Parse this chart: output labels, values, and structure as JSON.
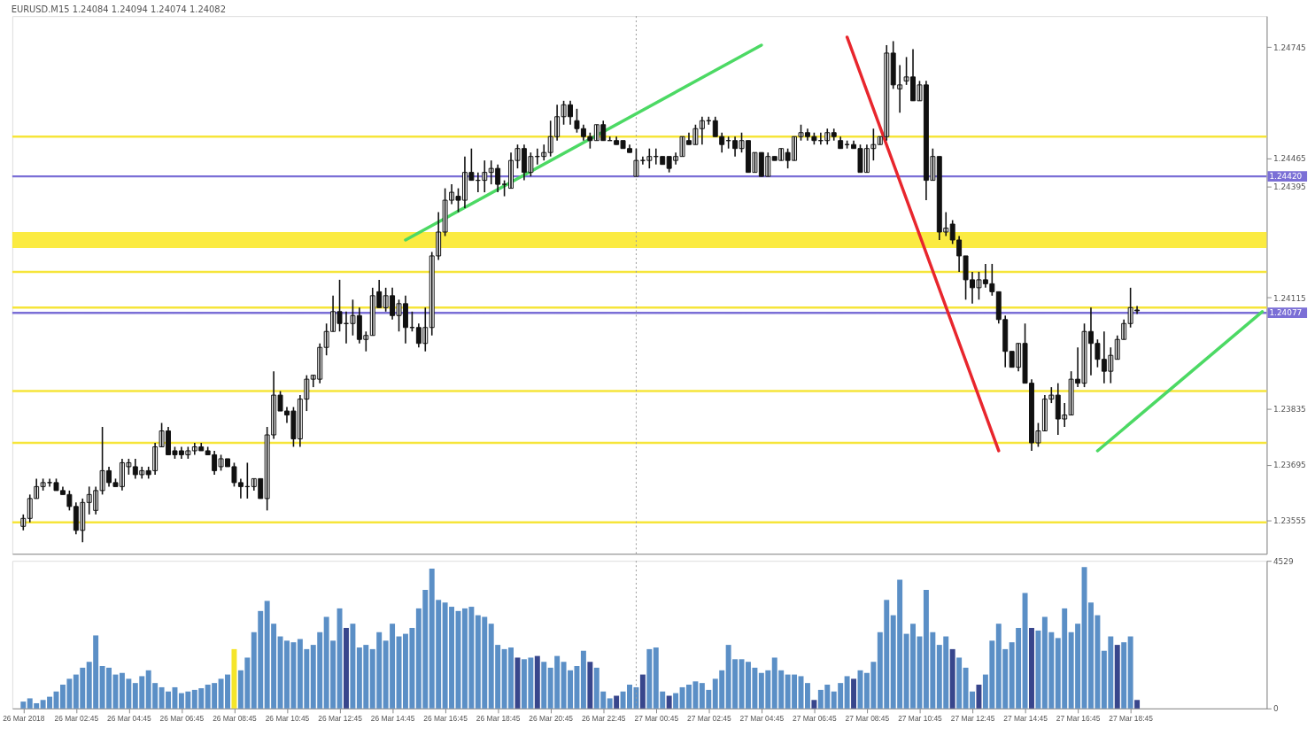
{
  "chart_data": [
    {
      "type": "candlestick",
      "title": "EURUSD.M15 1.24084 1.24094 1.24074 1.24082",
      "x": [
        "2018-03-26T00:45",
        "2018-03-26T01:00",
        "2018-03-26T01:15",
        "2018-03-26T01:30",
        "2018-03-26T01:45",
        "2018-03-26T02:00",
        "2018-03-26T02:15",
        "2018-03-26T02:30",
        "2018-03-26T02:45",
        "2018-03-26T03:00",
        "2018-03-26T03:15",
        "2018-03-26T03:30",
        "2018-03-26T03:45",
        "2018-03-26T04:00",
        "2018-03-26T04:15",
        "2018-03-26T04:30",
        "2018-03-26T04:45",
        "2018-03-26T05:00",
        "2018-03-26T05:15",
        "2018-03-26T05:30",
        "2018-03-26T05:45",
        "2018-03-26T06:00",
        "2018-03-26T06:15",
        "2018-03-26T06:30",
        "2018-03-26T06:45",
        "2018-03-26T07:00",
        "2018-03-26T07:15",
        "2018-03-26T07:30",
        "2018-03-26T07:45",
        "2018-03-26T08:00",
        "2018-03-26T08:15",
        "2018-03-26T08:30",
        "2018-03-26T08:45",
        "2018-03-26T09:00",
        "2018-03-26T09:15",
        "2018-03-26T09:30",
        "2018-03-26T09:45",
        "2018-03-26T10:00",
        "2018-03-26T10:15",
        "2018-03-26T10:30",
        "2018-03-26T10:45",
        "2018-03-26T11:00",
        "2018-03-26T11:15",
        "2018-03-26T11:30",
        "2018-03-26T11:45",
        "2018-03-26T12:00",
        "2018-03-26T12:15",
        "2018-03-26T12:30",
        "2018-03-26T12:45",
        "2018-03-26T13:00",
        "2018-03-26T13:15",
        "2018-03-26T13:30",
        "2018-03-26T13:45",
        "2018-03-26T14:00",
        "2018-03-26T14:15",
        "2018-03-26T14:30",
        "2018-03-26T14:45",
        "2018-03-26T15:00",
        "2018-03-26T15:15",
        "2018-03-26T15:30",
        "2018-03-26T15:45",
        "2018-03-26T16:00",
        "2018-03-26T16:15",
        "2018-03-26T16:30",
        "2018-03-26T16:45",
        "2018-03-26T17:00",
        "2018-03-26T17:15",
        "2018-03-26T17:30",
        "2018-03-26T17:45",
        "2018-03-26T18:00",
        "2018-03-26T18:15",
        "2018-03-26T18:30",
        "2018-03-26T18:45",
        "2018-03-26T19:00",
        "2018-03-26T19:15",
        "2018-03-26T19:30",
        "2018-03-26T19:45",
        "2018-03-26T20:00",
        "2018-03-26T20:15",
        "2018-03-26T20:30",
        "2018-03-26T20:45",
        "2018-03-26T21:00",
        "2018-03-26T21:15",
        "2018-03-26T21:30",
        "2018-03-26T21:45",
        "2018-03-26T22:00",
        "2018-03-26T22:15",
        "2018-03-26T22:30",
        "2018-03-26T22:45",
        "2018-03-26T23:00",
        "2018-03-26T23:15",
        "2018-03-26T23:30",
        "2018-03-26T23:45",
        "2018-03-27T00:00",
        "2018-03-27T00:15",
        "2018-03-27T00:30",
        "2018-03-27T00:45",
        "2018-03-27T01:00",
        "2018-03-27T01:15",
        "2018-03-27T01:30",
        "2018-03-27T01:45",
        "2018-03-27T02:00",
        "2018-03-27T02:15",
        "2018-03-27T02:30",
        "2018-03-27T02:45",
        "2018-03-27T03:00",
        "2018-03-27T03:15",
        "2018-03-27T03:30",
        "2018-03-27T03:45",
        "2018-03-27T04:00",
        "2018-03-27T04:15",
        "2018-03-27T04:30",
        "2018-03-27T04:45",
        "2018-03-27T05:00",
        "2018-03-27T05:15",
        "2018-03-27T05:30",
        "2018-03-27T05:45",
        "2018-03-27T06:00",
        "2018-03-27T06:15",
        "2018-03-27T06:30",
        "2018-03-27T06:45",
        "2018-03-27T07:00",
        "2018-03-27T07:15",
        "2018-03-27T07:30",
        "2018-03-27T07:45",
        "2018-03-27T08:00",
        "2018-03-27T08:15",
        "2018-03-27T08:30",
        "2018-03-27T08:45",
        "2018-03-27T09:00",
        "2018-03-27T09:15",
        "2018-03-27T09:30",
        "2018-03-27T09:45",
        "2018-03-27T10:00",
        "2018-03-27T10:15",
        "2018-03-27T10:30",
        "2018-03-27T10:45",
        "2018-03-27T11:00",
        "2018-03-27T11:15",
        "2018-03-27T11:30",
        "2018-03-27T11:45",
        "2018-03-27T12:00",
        "2018-03-27T12:15",
        "2018-03-27T12:30",
        "2018-03-27T12:45",
        "2018-03-27T13:00",
        "2018-03-27T13:15",
        "2018-03-27T13:30",
        "2018-03-27T13:45",
        "2018-03-27T14:00",
        "2018-03-27T14:15",
        "2018-03-27T14:30",
        "2018-03-27T14:45",
        "2018-03-27T15:00",
        "2018-03-27T15:15",
        "2018-03-27T15:30",
        "2018-03-27T15:45",
        "2018-03-27T16:00",
        "2018-03-27T16:15",
        "2018-03-27T16:30",
        "2018-03-27T16:45",
        "2018-03-27T17:00",
        "2018-03-27T17:15",
        "2018-03-27T17:30",
        "2018-03-27T17:45",
        "2018-03-27T18:00",
        "2018-03-27T18:15",
        "2018-03-27T18:30",
        "2018-03-27T18:45",
        "2018-03-27T19:00"
      ],
      "ohlc": [
        [
          1.2354,
          1.2357,
          1.2353,
          1.2356
        ],
        [
          1.2356,
          1.2362,
          1.2355,
          1.2361
        ],
        [
          1.2361,
          1.2366,
          1.2361,
          1.2364
        ],
        [
          1.2364,
          1.2366,
          1.2363,
          1.2365
        ],
        [
          1.2365,
          1.2366,
          1.2364,
          1.2365
        ],
        [
          1.2365,
          1.2366,
          1.2363,
          1.2363
        ],
        [
          1.2363,
          1.2364,
          1.2362,
          1.2362
        ],
        [
          1.2362,
          1.2363,
          1.2358,
          1.2359
        ],
        [
          1.2359,
          1.236,
          1.2352,
          1.2353
        ],
        [
          1.2353,
          1.2361,
          1.235,
          1.236
        ],
        [
          1.236,
          1.2364,
          1.2357,
          1.2362
        ],
        [
          1.2358,
          1.2364,
          1.2357,
          1.2363
        ],
        [
          1.2363,
          1.2379,
          1.2362,
          1.2368
        ],
        [
          1.2368,
          1.2369,
          1.2364,
          1.2365
        ],
        [
          1.2365,
          1.2366,
          1.2364,
          1.2364
        ],
        [
          1.2364,
          1.2371,
          1.2363,
          1.237
        ],
        [
          1.2369,
          1.2371,
          1.2367,
          1.237
        ],
        [
          1.2369,
          1.2371,
          1.2366,
          1.2367
        ],
        [
          1.2367,
          1.2369,
          1.2366,
          1.2368
        ],
        [
          1.2368,
          1.2369,
          1.2366,
          1.2367
        ],
        [
          1.2368,
          1.2375,
          1.2367,
          1.2374
        ],
        [
          1.2374,
          1.238,
          1.2374,
          1.2378
        ],
        [
          1.2378,
          1.2379,
          1.2372,
          1.2372
        ],
        [
          1.2373,
          1.2374,
          1.2371,
          1.2372
        ],
        [
          1.2373,
          1.2374,
          1.2371,
          1.2372
        ],
        [
          1.2372,
          1.2374,
          1.2371,
          1.2373
        ],
        [
          1.2373,
          1.2375,
          1.2372,
          1.2374
        ],
        [
          1.2374,
          1.2375,
          1.2373,
          1.2373
        ],
        [
          1.2373,
          1.2374,
          1.2372,
          1.2372
        ],
        [
          1.2372,
          1.2373,
          1.2367,
          1.2368
        ],
        [
          1.2369,
          1.2372,
          1.2368,
          1.2371
        ],
        [
          1.2371,
          1.2371,
          1.2369,
          1.2369
        ],
        [
          1.2369,
          1.237,
          1.2364,
          1.2365
        ],
        [
          1.2365,
          1.2366,
          1.2361,
          1.2364
        ],
        [
          1.2364,
          1.237,
          1.2361,
          1.2364
        ],
        [
          1.2364,
          1.2366,
          1.2363,
          1.2366
        ],
        [
          1.2366,
          1.2366,
          1.2361,
          1.2361
        ],
        [
          1.2361,
          1.2379,
          1.2358,
          1.2377
        ],
        [
          1.2377,
          1.2393,
          1.2376,
          1.2387
        ],
        [
          1.2387,
          1.2388,
          1.2383,
          1.2383
        ],
        [
          1.2383,
          1.2384,
          1.238,
          1.2382
        ],
        [
          1.2383,
          1.2384,
          1.2374,
          1.2376
        ],
        [
          1.2376,
          1.2387,
          1.2374,
          1.2386
        ],
        [
          1.2386,
          1.2392,
          1.2383,
          1.2391
        ],
        [
          1.2391,
          1.2392,
          1.2389,
          1.2392
        ],
        [
          1.2391,
          1.24,
          1.239,
          1.2399
        ],
        [
          1.2399,
          1.2405,
          1.2397,
          1.2403
        ],
        [
          1.2403,
          1.2412,
          1.2403,
          1.2408
        ],
        [
          1.2408,
          1.2416,
          1.2403,
          1.2405
        ],
        [
          1.2405,
          1.2408,
          1.24,
          1.2405
        ],
        [
          1.2405,
          1.2411,
          1.2402,
          1.2407
        ],
        [
          1.2407,
          1.2409,
          1.24,
          1.2401
        ],
        [
          1.2401,
          1.2403,
          1.2398,
          1.2402
        ],
        [
          1.2402,
          1.2414,
          1.2402,
          1.2412
        ],
        [
          1.2413,
          1.2416,
          1.2409,
          1.2409
        ],
        [
          1.2409,
          1.2414,
          1.2408,
          1.2412
        ],
        [
          1.2412,
          1.2414,
          1.2406,
          1.2407
        ],
        [
          1.2407,
          1.2411,
          1.2403,
          1.241
        ],
        [
          1.241,
          1.2412,
          1.24,
          1.2404
        ],
        [
          1.2404,
          1.2408,
          1.2403,
          1.2404
        ],
        [
          1.2404,
          1.2405,
          1.2399,
          1.24
        ],
        [
          1.24,
          1.2409,
          1.2398,
          1.2404
        ],
        [
          1.2404,
          1.2423,
          1.2402,
          1.2422
        ],
        [
          1.2422,
          1.2433,
          1.2421,
          1.2428
        ],
        [
          1.2428,
          1.2439,
          1.2427,
          1.2436
        ],
        [
          1.2436,
          1.244,
          1.2435,
          1.2438
        ],
        [
          1.2437,
          1.2439,
          1.2433,
          1.2436
        ],
        [
          1.2436,
          1.2447,
          1.2434,
          1.2443
        ],
        [
          1.2443,
          1.2449,
          1.2441,
          1.2441
        ],
        [
          1.2441,
          1.2443,
          1.2438,
          1.2441
        ],
        [
          1.2441,
          1.2446,
          1.2438,
          1.2443
        ],
        [
          1.2443,
          1.2446,
          1.244,
          1.2444
        ],
        [
          1.2444,
          1.2445,
          1.2438,
          1.244
        ],
        [
          1.244,
          1.2441,
          1.2437,
          1.244
        ],
        [
          1.2439,
          1.2448,
          1.2439,
          1.2446
        ],
        [
          1.2446,
          1.245,
          1.2444,
          1.2449
        ],
        [
          1.2449,
          1.245,
          1.2441,
          1.2443
        ],
        [
          1.2443,
          1.2448,
          1.2442,
          1.2447
        ],
        [
          1.2447,
          1.2449,
          1.2445,
          1.2447
        ],
        [
          1.2447,
          1.245,
          1.2446,
          1.2448
        ],
        [
          1.2448,
          1.2456,
          1.2447,
          1.2452
        ],
        [
          1.2452,
          1.246,
          1.2451,
          1.2457
        ],
        [
          1.2457,
          1.2461,
          1.2455,
          1.246
        ],
        [
          1.246,
          1.2461,
          1.2455,
          1.2457
        ],
        [
          1.2456,
          1.2459,
          1.2453,
          1.2454
        ],
        [
          1.2454,
          1.2455,
          1.2451,
          1.2452
        ],
        [
          1.2452,
          1.2453,
          1.2449,
          1.2451
        ],
        [
          1.2451,
          1.2455,
          1.2451,
          1.2455
        ],
        [
          1.2455,
          1.2456,
          1.2451,
          1.2451
        ],
        [
          1.2451,
          1.2452,
          1.2451,
          1.2451
        ],
        [
          1.2451,
          1.2452,
          1.245,
          1.245
        ],
        [
          1.2451,
          1.2451,
          1.2449,
          1.2449
        ],
        [
          1.2449,
          1.245,
          1.2448,
          1.2448
        ],
        [
          1.2442,
          1.2449,
          1.2442,
          1.2446
        ],
        [
          1.2446,
          1.2447,
          1.2445,
          1.2446
        ],
        [
          1.2446,
          1.2449,
          1.2444,
          1.2447
        ],
        [
          1.2447,
          1.2449,
          1.2445,
          1.2447
        ],
        [
          1.2447,
          1.2447,
          1.2445,
          1.2445
        ],
        [
          1.2447,
          1.2447,
          1.2443,
          1.2444
        ],
        [
          1.2446,
          1.2448,
          1.2445,
          1.2447
        ],
        [
          1.2447,
          1.2452,
          1.2447,
          1.2452
        ],
        [
          1.2451,
          1.2453,
          1.245,
          1.245
        ],
        [
          1.245,
          1.2455,
          1.245,
          1.2454
        ],
        [
          1.2454,
          1.2457,
          1.245,
          1.2456
        ],
        [
          1.2456,
          1.2457,
          1.2455,
          1.2456
        ],
        [
          1.2456,
          1.2457,
          1.2452,
          1.2452
        ],
        [
          1.2452,
          1.2453,
          1.2448,
          1.245
        ],
        [
          1.2451,
          1.2452,
          1.2449,
          1.2451
        ],
        [
          1.2451,
          1.2452,
          1.2447,
          1.2449
        ],
        [
          1.2449,
          1.2453,
          1.2448,
          1.2451
        ],
        [
          1.2451,
          1.2451,
          1.2443,
          1.2443
        ],
        [
          1.2443,
          1.2448,
          1.2443,
          1.2448
        ],
        [
          1.2448,
          1.2448,
          1.2442,
          1.2442
        ],
        [
          1.2442,
          1.2448,
          1.2442,
          1.2447
        ],
        [
          1.2447,
          1.2447,
          1.2446,
          1.2446
        ],
        [
          1.2446,
          1.2449,
          1.2446,
          1.2449
        ],
        [
          1.2448,
          1.2449,
          1.2444,
          1.2446
        ],
        [
          1.2446,
          1.2452,
          1.2446,
          1.2452
        ],
        [
          1.2452,
          1.2455,
          1.2451,
          1.2453
        ],
        [
          1.2453,
          1.2454,
          1.2451,
          1.2452
        ],
        [
          1.2452,
          1.2453,
          1.245,
          1.2451
        ],
        [
          1.2451,
          1.2453,
          1.245,
          1.2451
        ],
        [
          1.2451,
          1.2454,
          1.245,
          1.2453
        ],
        [
          1.2453,
          1.2454,
          1.2451,
          1.2452
        ],
        [
          1.2451,
          1.2452,
          1.2449,
          1.2449
        ],
        [
          1.245,
          1.2451,
          1.2449,
          1.245
        ],
        [
          1.245,
          1.2451,
          1.2449,
          1.2449
        ],
        [
          1.2449,
          1.245,
          1.2443,
          1.2443
        ],
        [
          1.2443,
          1.245,
          1.2443,
          1.2449
        ],
        [
          1.2449,
          1.2454,
          1.2446,
          1.245
        ],
        [
          1.245,
          1.2452,
          1.245,
          1.2452
        ],
        [
          1.2452,
          1.2475,
          1.2451,
          1.2473
        ],
        [
          1.2473,
          1.2476,
          1.2464,
          1.2465
        ],
        [
          1.2464,
          1.247,
          1.2458,
          1.2465
        ],
        [
          1.2466,
          1.2472,
          1.2465,
          1.2467
        ],
        [
          1.2467,
          1.2474,
          1.2461,
          1.2461
        ],
        [
          1.2461,
          1.2466,
          1.2461,
          1.2465
        ],
        [
          1.2465,
          1.2466,
          1.2436,
          1.2441
        ],
        [
          1.2441,
          1.2449,
          1.2441,
          1.2447
        ],
        [
          1.2447,
          1.2447,
          1.2426,
          1.2428
        ],
        [
          1.2428,
          1.2433,
          1.2427,
          1.2429
        ],
        [
          1.243,
          1.2431,
          1.2425,
          1.2426
        ],
        [
          1.2426,
          1.2427,
          1.2418,
          1.2422
        ],
        [
          1.2422,
          1.2422,
          1.2411,
          1.2416
        ],
        [
          1.2416,
          1.2418,
          1.241,
          1.2414
        ],
        [
          1.2414,
          1.2418,
          1.2411,
          1.2416
        ],
        [
          1.2416,
          1.242,
          1.2414,
          1.2415
        ],
        [
          1.2415,
          1.242,
          1.2412,
          1.2413
        ],
        [
          1.2413,
          1.2413,
          1.2405,
          1.2406
        ],
        [
          1.2406,
          1.2407,
          1.2394,
          1.2398
        ],
        [
          1.2398,
          1.2398,
          1.2394,
          1.2394
        ],
        [
          1.2394,
          1.24,
          1.2393,
          1.24
        ],
        [
          1.24,
          1.2405,
          1.239,
          1.239
        ],
        [
          1.239,
          1.2391,
          1.2373,
          1.2375
        ],
        [
          1.2375,
          1.238,
          1.2374,
          1.2378
        ],
        [
          1.2378,
          1.2387,
          1.2378,
          1.2386
        ],
        [
          1.2386,
          1.2389,
          1.2385,
          1.2387
        ],
        [
          1.2387,
          1.239,
          1.2377,
          1.2381
        ],
        [
          1.2381,
          1.2385,
          1.2379,
          1.2382
        ],
        [
          1.2382,
          1.2393,
          1.2382,
          1.2391
        ],
        [
          1.2391,
          1.2399,
          1.2389,
          1.239
        ],
        [
          1.239,
          1.2405,
          1.2389,
          1.2403
        ],
        [
          1.2403,
          1.2409,
          1.2392,
          1.24
        ],
        [
          1.24,
          1.2401,
          1.2394,
          1.2396
        ],
        [
          1.2396,
          1.2403,
          1.239,
          1.2393
        ],
        [
          1.2393,
          1.2399,
          1.239,
          1.2397
        ],
        [
          1.2396,
          1.2402,
          1.2396,
          1.2401
        ],
        [
          1.2401,
          1.2406,
          1.2401,
          1.2405
        ],
        [
          1.2405,
          1.2414,
          1.2404,
          1.2409
        ],
        [
          1.24084,
          1.24094,
          1.24074,
          1.24082
        ]
      ],
      "xlim": [
        "2018-03-26T00:30",
        "2018-03-27T23:45"
      ],
      "ylim": [
        1.23471,
        1.24823
      ],
      "yticks": [
        1.23555,
        1.23695,
        1.23835,
        1.24115,
        1.24395,
        1.24465,
        1.24745
      ],
      "tick_labels": "y",
      "series": [
        {
          "type": "line",
          "color": "#4cd964",
          "x": [
            "2018-03-26T15:15",
            "2018-03-27T04:45"
          ],
          "values": [
            1.2426,
            1.2475
          ]
        },
        {
          "type": "line",
          "color": "#e8262d",
          "x": [
            "2018-03-27T08:00",
            "2018-03-27T13:45"
          ],
          "values": [
            1.2477,
            1.2373
          ]
        },
        {
          "type": "line",
          "color": "#4cd964",
          "x": [
            "2018-03-27T17:30",
            "2018-03-27T23:45"
          ],
          "values": [
            1.2373,
            1.2408
          ]
        }
      ],
      "bands": [
        {
          "axis": "y",
          "from": 1.2424,
          "to": 1.2428,
          "color": "#fbe92e"
        }
      ],
      "ref_lines": [
        {
          "axis": "y",
          "value": 1.2452,
          "color": "#f6e53a"
        },
        {
          "axis": "y",
          "value": 1.2418,
          "color": "#f6e53a"
        },
        {
          "axis": "y",
          "value": 1.2409,
          "color": "#f6e53a"
        },
        {
          "axis": "y",
          "value": 1.2388,
          "color": "#f6e53a"
        },
        {
          "axis": "y",
          "value": 1.2375,
          "color": "#f6e53a"
        },
        {
          "axis": "y",
          "value": 1.2355,
          "color": "#f6e53a"
        },
        {
          "axis": "y",
          "value": 1.2442,
          "label": "1.24420",
          "color": "#7b6fd6"
        },
        {
          "axis": "y",
          "value": 1.24077,
          "label": "1.24077",
          "color": "#7b6fd6"
        },
        {
          "axis": "x",
          "value": "2018-03-27T00:00",
          "color": "#9a9a9a",
          "line_style": "dotted"
        }
      ]
    },
    {
      "type": "bar",
      "x": [
        "2018-03-26T00:45",
        "2018-03-26T01:00",
        "2018-03-26T01:15",
        "2018-03-26T01:30",
        "2018-03-26T01:45",
        "2018-03-26T02:00",
        "2018-03-26T02:15",
        "2018-03-26T02:30",
        "2018-03-26T02:45",
        "2018-03-26T03:00",
        "2018-03-26T03:15",
        "2018-03-26T03:30",
        "2018-03-26T03:45",
        "2018-03-26T04:00",
        "2018-03-26T04:15",
        "2018-03-26T04:30",
        "2018-03-26T04:45",
        "2018-03-26T05:00",
        "2018-03-26T05:15",
        "2018-03-26T05:30",
        "2018-03-26T05:45",
        "2018-03-26T06:00",
        "2018-03-26T06:15",
        "2018-03-26T06:30",
        "2018-03-26T06:45",
        "2018-03-26T07:00",
        "2018-03-26T07:15",
        "2018-03-26T07:30",
        "2018-03-26T07:45",
        "2018-03-26T08:00",
        "2018-03-26T08:15",
        "2018-03-26T08:30",
        "2018-03-26T08:45",
        "2018-03-26T09:00",
        "2018-03-26T09:15",
        "2018-03-26T09:30",
        "2018-03-26T09:45",
        "2018-03-26T10:00",
        "2018-03-26T10:15",
        "2018-03-26T10:30",
        "2018-03-26T10:45",
        "2018-03-26T11:00",
        "2018-03-26T11:15",
        "2018-03-26T11:30",
        "2018-03-26T11:45",
        "2018-03-26T12:00",
        "2018-03-26T12:15",
        "2018-03-26T12:30",
        "2018-03-26T12:45",
        "2018-03-26T13:00",
        "2018-03-26T13:15",
        "2018-03-26T13:30",
        "2018-03-26T13:45",
        "2018-03-26T14:00",
        "2018-03-26T14:15",
        "2018-03-26T14:30",
        "2018-03-26T14:45",
        "2018-03-26T15:00",
        "2018-03-26T15:15",
        "2018-03-26T15:30",
        "2018-03-26T15:45",
        "2018-03-26T16:00",
        "2018-03-26T16:15",
        "2018-03-26T16:30",
        "2018-03-26T16:45",
        "2018-03-26T17:00",
        "2018-03-26T17:15",
        "2018-03-26T17:30",
        "2018-03-26T17:45",
        "2018-03-26T18:00",
        "2018-03-26T18:15",
        "2018-03-26T18:30",
        "2018-03-26T18:45",
        "2018-03-26T19:00",
        "2018-03-26T19:15",
        "2018-03-26T19:30",
        "2018-03-26T19:45",
        "2018-03-26T20:00",
        "2018-03-26T20:15",
        "2018-03-26T20:30",
        "2018-03-26T20:45",
        "2018-03-26T21:00",
        "2018-03-26T21:15",
        "2018-03-26T21:30",
        "2018-03-26T21:45",
        "2018-03-26T22:00",
        "2018-03-26T22:15",
        "2018-03-26T22:30",
        "2018-03-26T22:45",
        "2018-03-26T23:00",
        "2018-03-26T23:15",
        "2018-03-26T23:30",
        "2018-03-26T23:45",
        "2018-03-27T00:00",
        "2018-03-27T00:15",
        "2018-03-27T00:30",
        "2018-03-27T00:45",
        "2018-03-27T01:00",
        "2018-03-27T01:15",
        "2018-03-27T01:30",
        "2018-03-27T01:45",
        "2018-03-27T02:00",
        "2018-03-27T02:15",
        "2018-03-27T02:30",
        "2018-03-27T02:45",
        "2018-03-27T03:00",
        "2018-03-27T03:15",
        "2018-03-27T03:30",
        "2018-03-27T03:45",
        "2018-03-27T04:00",
        "2018-03-27T04:15",
        "2018-03-27T04:30",
        "2018-03-27T04:45",
        "2018-03-27T05:00",
        "2018-03-27T05:15",
        "2018-03-27T05:30",
        "2018-03-27T05:45",
        "2018-03-27T06:00",
        "2018-03-27T06:15",
        "2018-03-27T06:30",
        "2018-03-27T06:45",
        "2018-03-27T07:00",
        "2018-03-27T07:15",
        "2018-03-27T07:30",
        "2018-03-27T07:45",
        "2018-03-27T08:00",
        "2018-03-27T08:15",
        "2018-03-27T08:30",
        "2018-03-27T08:45",
        "2018-03-27T09:00",
        "2018-03-27T09:15",
        "2018-03-27T09:30",
        "2018-03-27T09:45",
        "2018-03-27T10:00",
        "2018-03-27T10:15",
        "2018-03-27T10:30",
        "2018-03-27T10:45",
        "2018-03-27T11:00",
        "2018-03-27T11:15",
        "2018-03-27T11:30",
        "2018-03-27T11:45",
        "2018-03-27T12:00",
        "2018-03-27T12:15",
        "2018-03-27T12:30",
        "2018-03-27T12:45",
        "2018-03-27T13:00",
        "2018-03-27T13:15",
        "2018-03-27T13:30",
        "2018-03-27T13:45",
        "2018-03-27T14:00",
        "2018-03-27T14:15",
        "2018-03-27T14:30",
        "2018-03-27T14:45",
        "2018-03-27T15:00",
        "2018-03-27T15:15",
        "2018-03-27T15:30",
        "2018-03-27T15:45",
        "2018-03-27T16:00",
        "2018-03-27T16:15",
        "2018-03-27T16:30",
        "2018-03-27T16:45",
        "2018-03-27T17:00",
        "2018-03-27T17:15",
        "2018-03-27T17:30",
        "2018-03-27T17:45",
        "2018-03-27T18:00",
        "2018-03-27T18:15",
        "2018-03-27T18:30",
        "2018-03-27T18:45",
        "2018-03-27T19:00"
      ],
      "values": [
        210,
        310,
        160,
        260,
        360,
        520,
        730,
        910,
        1040,
        1250,
        1430,
        2240,
        1300,
        1250,
        1040,
        1090,
        910,
        780,
        990,
        1170,
        780,
        650,
        520,
        650,
        470,
        520,
        570,
        620,
        730,
        780,
        910,
        1040,
        1820,
        1170,
        1560,
        2340,
        2990,
        3300,
        2600,
        2210,
        2080,
        2030,
        2130,
        1820,
        1950,
        2340,
        2810,
        2080,
        3070,
        2470,
        2600,
        1870,
        1950,
        1820,
        2340,
        2080,
        2600,
        2210,
        2290,
        2470,
        3070,
        3640,
        4290,
        3330,
        3250,
        3120,
        2990,
        3070,
        3120,
        2860,
        2810,
        2600,
        1950,
        1820,
        1870,
        1560,
        1510,
        1560,
        1610,
        1430,
        1250,
        1610,
        1430,
        1170,
        1300,
        1770,
        1430,
        1250,
        520,
        310,
        390,
        520,
        730,
        650,
        1040,
        1820,
        1870,
        520,
        390,
        470,
        650,
        730,
        830,
        780,
        570,
        910,
        1170,
        1950,
        1510,
        1510,
        1430,
        1250,
        1090,
        1170,
        1560,
        1170,
        1040,
        1040,
        990,
        780,
        260,
        570,
        730,
        520,
        780,
        990,
        910,
        1170,
        1090,
        1430,
        2340,
        3330,
        2860,
        3950,
        2290,
        2600,
        2210,
        3640,
        2340,
        1950,
        2210,
        1820,
        1560,
        1250,
        520,
        730,
        1040,
        2080,
        2600,
        1820,
        2030,
        2470,
        3540,
        2470,
        2390,
        2810,
        2340,
        2160,
        3070,
        2340,
        2600,
        4340,
        3250,
        2860,
        1770,
        2210,
        1950,
        2030,
        2210,
        260
      ],
      "colors": [
        "#5b8fc6",
        "#5b8fc6",
        "#5b8fc6",
        "#5b8fc6",
        "#5b8fc6",
        "#5b8fc6",
        "#5b8fc6",
        "#5b8fc6",
        "#5b8fc6",
        "#5b8fc6",
        "#5b8fc6",
        "#5b8fc6",
        "#5b8fc6",
        "#5b8fc6",
        "#5b8fc6",
        "#5b8fc6",
        "#5b8fc6",
        "#5b8fc6",
        "#5b8fc6",
        "#5b8fc6",
        "#5b8fc6",
        "#5b8fc6",
        "#5b8fc6",
        "#5b8fc6",
        "#5b8fc6",
        "#5b8fc6",
        "#5b8fc6",
        "#5b8fc6",
        "#5b8fc6",
        "#5b8fc6",
        "#5b8fc6",
        "#5b8fc6",
        "#f5e52a",
        "#5b8fc6",
        "#5b8fc6",
        "#5b8fc6",
        "#5b8fc6",
        "#5b8fc6",
        "#5b8fc6",
        "#5b8fc6",
        "#5b8fc6",
        "#5b8fc6",
        "#5b8fc6",
        "#5b8fc6",
        "#5b8fc6",
        "#5b8fc6",
        "#5b8fc6",
        "#5b8fc6",
        "#5b8fc6",
        "#38468c",
        "#5b8fc6",
        "#5b8fc6",
        "#5b8fc6",
        "#5b8fc6",
        "#5b8fc6",
        "#5b8fc6",
        "#5b8fc6",
        "#5b8fc6",
        "#5b8fc6",
        "#5b8fc6",
        "#5b8fc6",
        "#5b8fc6",
        "#5b8fc6",
        "#5b8fc6",
        "#5b8fc6",
        "#5b8fc6",
        "#5b8fc6",
        "#5b8fc6",
        "#5b8fc6",
        "#5b8fc6",
        "#5b8fc6",
        "#5b8fc6",
        "#5b8fc6",
        "#5b8fc6",
        "#5b8fc6",
        "#38468c",
        "#5b8fc6",
        "#5b8fc6",
        "#38468c",
        "#5b8fc6",
        "#5b8fc6",
        "#5b8fc6",
        "#5b8fc6",
        "#5b8fc6",
        "#5b8fc6",
        "#5b8fc6",
        "#38468c",
        "#5b8fc6",
        "#5b8fc6",
        "#5b8fc6",
        "#38468c",
        "#5b8fc6",
        "#5b8fc6",
        "#5b8fc6",
        "#38468c",
        "#5b8fc6",
        "#5b8fc6",
        "#5b8fc6",
        "#38468c",
        "#5b8fc6",
        "#5b8fc6",
        "#5b8fc6",
        "#5b8fc6",
        "#5b8fc6",
        "#5b8fc6",
        "#5b8fc6",
        "#5b8fc6",
        "#5b8fc6",
        "#5b8fc6",
        "#5b8fc6",
        "#5b8fc6",
        "#5b8fc6",
        "#5b8fc6",
        "#5b8fc6",
        "#5b8fc6",
        "#5b8fc6",
        "#5b8fc6",
        "#5b8fc6",
        "#5b8fc6",
        "#5b8fc6",
        "#38468c",
        "#5b8fc6",
        "#5b8fc6",
        "#5b8fc6",
        "#5b8fc6",
        "#5b8fc6",
        "#38468c",
        "#5b8fc6",
        "#5b8fc6",
        "#5b8fc6",
        "#5b8fc6",
        "#5b8fc6",
        "#5b8fc6",
        "#5b8fc6",
        "#5b8fc6",
        "#5b8fc6",
        "#5b8fc6",
        "#5b8fc6",
        "#5b8fc6",
        "#5b8fc6",
        "#5b8fc6",
        "#38468c",
        "#5b8fc6",
        "#5b8fc6",
        "#5b8fc6",
        "#38468c",
        "#5b8fc6",
        "#5b8fc6",
        "#5b8fc6",
        "#5b8fc6",
        "#5b8fc6",
        "#5b8fc6",
        "#5b8fc6",
        "#38468c",
        "#5b8fc6",
        "#5b8fc6",
        "#5b8fc6",
        "#5b8fc6",
        "#5b8fc6",
        "#5b8fc6",
        "#5b8fc6",
        "#5b8fc6",
        "#5b8fc6",
        "#5b8fc6",
        "#5b8fc6",
        "#5b8fc6",
        "#38468c",
        "#5b8fc6",
        "#5b8fc6",
        "#38468c"
      ],
      "xlim": [
        "2018-03-26T00:30",
        "2018-03-27T23:45"
      ],
      "ylim": [
        0,
        4529
      ],
      "yticks": [
        0,
        4529
      ],
      "xticks": [
        {
          "value": "2018-03-26T00:45",
          "label": "26 Mar 2018"
        },
        {
          "value": "2018-03-26T02:45",
          "label": "26 Mar 02:45"
        },
        {
          "value": "2018-03-26T04:45",
          "label": "26 Mar 04:45"
        },
        {
          "value": "2018-03-26T06:45",
          "label": "26 Mar 06:45"
        },
        {
          "value": "2018-03-26T08:45",
          "label": "26 Mar 08:45"
        },
        {
          "value": "2018-03-26T10:45",
          "label": "26 Mar 10:45"
        },
        {
          "value": "2018-03-26T12:45",
          "label": "26 Mar 12:45"
        },
        {
          "value": "2018-03-26T14:45",
          "label": "26 Mar 14:45"
        },
        {
          "value": "2018-03-26T16:45",
          "label": "26 Mar 16:45"
        },
        {
          "value": "2018-03-26T18:45",
          "label": "26 Mar 18:45"
        },
        {
          "value": "2018-03-26T20:45",
          "label": "26 Mar 20:45"
        },
        {
          "value": "2018-03-26T22:45",
          "label": "26 Mar 22:45"
        },
        {
          "value": "2018-03-27T00:45",
          "label": "27 Mar 00:45"
        },
        {
          "value": "2018-03-27T02:45",
          "label": "27 Mar 02:45"
        },
        {
          "value": "2018-03-27T04:45",
          "label": "27 Mar 04:45"
        },
        {
          "value": "2018-03-27T06:45",
          "label": "27 Mar 06:45"
        },
        {
          "value": "2018-03-27T08:45",
          "label": "27 Mar 08:45"
        },
        {
          "value": "2018-03-27T10:45",
          "label": "27 Mar 10:45"
        },
        {
          "value": "2018-03-27T12:45",
          "label": "27 Mar 12:45"
        },
        {
          "value": "2018-03-27T14:45",
          "label": "27 Mar 14:45"
        },
        {
          "value": "2018-03-27T16:45",
          "label": "27 Mar 16:45"
        },
        {
          "value": "2018-03-27T18:45",
          "label": "27 Mar 18:45"
        }
      ],
      "ref_lines": [
        {
          "axis": "x",
          "value": "2018-03-27T00:00",
          "color": "#9a9a9a",
          "line_style": "dotted"
        }
      ]
    }
  ]
}
